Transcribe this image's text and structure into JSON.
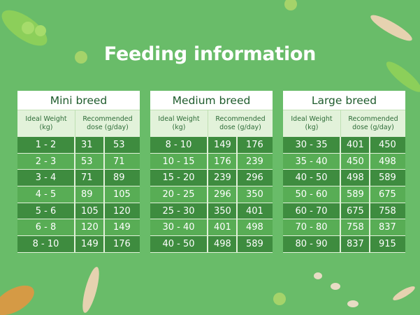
{
  "header": {
    "title": "Feeding information"
  },
  "tables": [
    {
      "title": "Mini breed",
      "columns": [
        "Ideal Weight (kg)",
        "Recommended dose (g/day)"
      ],
      "rows": [
        [
          "1 - 2",
          31,
          53
        ],
        [
          "2 - 3",
          53,
          71
        ],
        [
          "3 - 4",
          71,
          89
        ],
        [
          "4 - 5",
          89,
          105
        ],
        [
          "5 - 6",
          105,
          120
        ],
        [
          "6 - 8",
          120,
          149
        ],
        [
          "8 - 10",
          149,
          176
        ]
      ]
    },
    {
      "title": "Medium breed",
      "columns": [
        "Ideal Weight (kg)",
        "Recommended dose (g/day)"
      ],
      "rows": [
        [
          "8 - 10",
          149,
          176
        ],
        [
          "10 - 15",
          176,
          239
        ],
        [
          "15 - 20",
          239,
          296
        ],
        [
          "20 - 25",
          296,
          350
        ],
        [
          "25 - 30",
          350,
          401
        ],
        [
          "30 - 40",
          401,
          498
        ],
        [
          "40 - 50",
          498,
          589
        ]
      ]
    },
    {
      "title": "Large breed",
      "columns": [
        "Ideal Weight (kg)",
        "Recommended dose (g/day)"
      ],
      "rows": [
        [
          "30 - 35",
          401,
          450
        ],
        [
          "35 - 40",
          450,
          498
        ],
        [
          "40 - 50",
          498,
          589
        ],
        [
          "50 - 60",
          589,
          675
        ],
        [
          "60 - 70",
          675,
          758
        ],
        [
          "70 - 80",
          758,
          837
        ],
        [
          "80 - 90",
          837,
          915
        ]
      ]
    }
  ]
}
